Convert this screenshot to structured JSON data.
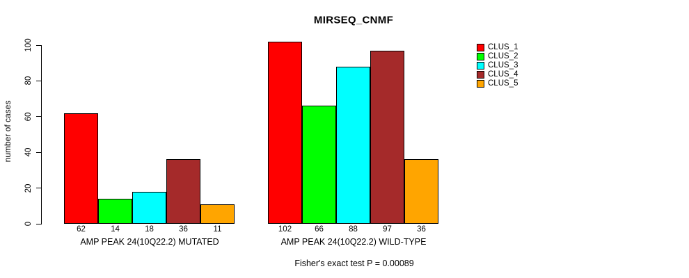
{
  "chart_data": {
    "type": "bar",
    "title": "MIRSEQ_CNMF",
    "ylabel": "number of cases",
    "xlabel": "",
    "ylim": [
      0,
      100
    ],
    "yticks": [
      0,
      20,
      40,
      60,
      80,
      100
    ],
    "grid": false,
    "legend_position": "right",
    "annotation": "Fisher's exact test P = 0.00089",
    "groups": [
      {
        "label": "AMP PEAK 24(10Q22.2) MUTATED",
        "values": [
          62,
          14,
          18,
          36,
          11
        ]
      },
      {
        "label": "AMP PEAK 24(10Q22.2) WILD-TYPE",
        "values": [
          102,
          66,
          88,
          97,
          36
        ]
      }
    ],
    "series": [
      {
        "name": "CLUS_1",
        "color": "#FF0000"
      },
      {
        "name": "CLUS_2",
        "color": "#00FF00"
      },
      {
        "name": "CLUS_3",
        "color": "#00FFFF"
      },
      {
        "name": "CLUS_4",
        "color": "#A52A2A"
      },
      {
        "name": "CLUS_5",
        "color": "#FFA500"
      }
    ]
  }
}
